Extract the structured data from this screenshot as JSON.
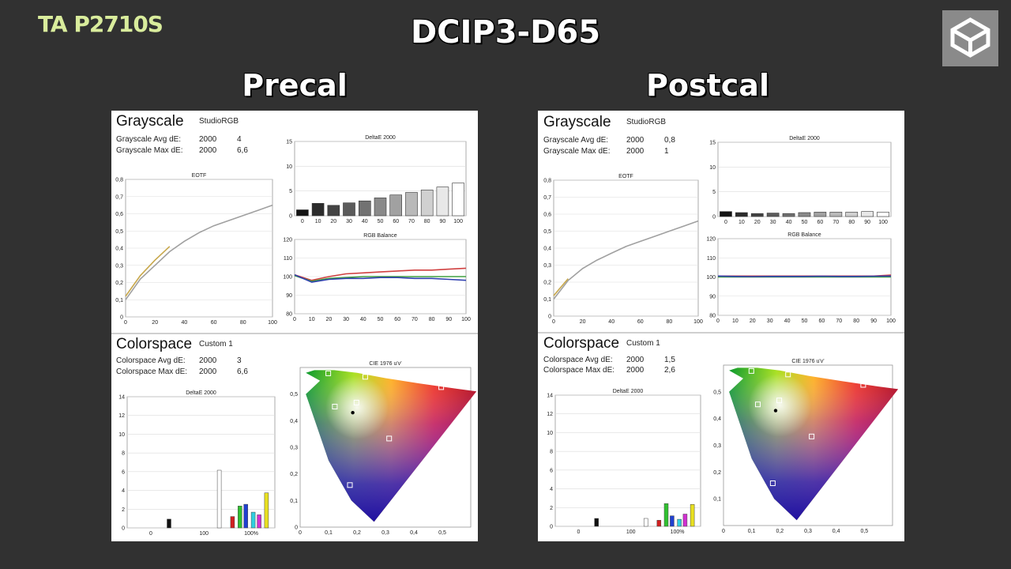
{
  "header": {
    "brand": "TA P2710S",
    "title": "DCIP3-D65"
  },
  "panels": [
    {
      "heading": "Precal",
      "grayscale": {
        "title": "Grayscale",
        "mode": "StudioRGB",
        "avg_label": "Grayscale Avg dE:",
        "avg_std": "2000",
        "avg_val": "4",
        "max_label": "Grayscale Max dE:",
        "max_std": "2000",
        "max_val": "6,6"
      },
      "colorspace": {
        "title": "Colorspace",
        "mode": "Custom 1",
        "avg_label": "Colorspace Avg dE:",
        "avg_std": "2000",
        "avg_val": "3",
        "max_label": "Colorspace Max dE:",
        "max_std": "2000",
        "max_val": "6,6"
      }
    },
    {
      "heading": "Postcal",
      "grayscale": {
        "title": "Grayscale",
        "mode": "StudioRGB",
        "avg_label": "Grayscale Avg dE:",
        "avg_std": "2000",
        "avg_val": "0,8",
        "max_label": "Grayscale Max dE:",
        "max_std": "2000",
        "max_val": "1"
      },
      "colorspace": {
        "title": "Colorspace",
        "mode": "Custom 1",
        "avg_label": "Colorspace Avg dE:",
        "avg_std": "2000",
        "avg_val": "1,5",
        "max_label": "Colorspace Max dE:",
        "max_std": "2000",
        "max_val": "2,6"
      }
    }
  ],
  "chart_data": [
    {
      "panel": 0,
      "id": "eotf",
      "type": "line",
      "title": "EOTF",
      "xticks": [
        "0",
        "20",
        "40",
        "60",
        "80",
        "100"
      ],
      "yticks": [
        "0",
        "0,1",
        "0,2",
        "0,3",
        "0,4",
        "0,5",
        "0,6",
        "0,7",
        "0,8"
      ],
      "xlim": [
        0,
        100
      ],
      "ylim": [
        0,
        0.8
      ],
      "series": [
        {
          "color": "#a0a0a0",
          "x": [
            0,
            10,
            20,
            30,
            40,
            50,
            60,
            70,
            80,
            90,
            100
          ],
          "y": [
            0.1,
            0.22,
            0.3,
            0.38,
            0.44,
            0.49,
            0.53,
            0.56,
            0.59,
            0.62,
            0.65
          ]
        },
        {
          "color": "#c8a84c",
          "x": [
            0,
            10,
            20,
            30
          ],
          "y": [
            0.12,
            0.24,
            0.33,
            0.41
          ]
        }
      ]
    },
    {
      "panel": 0,
      "id": "gs_de",
      "type": "bar",
      "title": "DeltaE 2000",
      "categories": [
        "0",
        "10",
        "20",
        "30",
        "40",
        "50",
        "60",
        "70",
        "80",
        "90",
        "100"
      ],
      "yticks": [
        "0",
        "5",
        "10",
        "15"
      ],
      "ylim": [
        0,
        15
      ],
      "values": [
        1.2,
        2.5,
        2.1,
        2.6,
        3.0,
        3.6,
        4.2,
        4.7,
        5.2,
        5.8,
        6.6
      ]
    },
    {
      "panel": 0,
      "id": "rgb",
      "type": "line",
      "title": "RGB Balance",
      "xticks": [
        "0",
        "10",
        "20",
        "30",
        "40",
        "50",
        "60",
        "70",
        "80",
        "90",
        "100"
      ],
      "yticks": [
        "80",
        "90",
        "100",
        "110",
        "120"
      ],
      "xlim": [
        0,
        100
      ],
      "ylim": [
        80,
        120
      ],
      "series": [
        {
          "color": "#d04040",
          "x": [
            0,
            10,
            20,
            30,
            40,
            50,
            60,
            70,
            80,
            90,
            100
          ],
          "y": [
            101,
            98,
            100,
            101.5,
            102,
            102.5,
            103,
            103.5,
            103.5,
            104,
            104.5
          ]
        },
        {
          "color": "#40a040",
          "x": [
            0,
            10,
            20,
            30,
            40,
            50,
            60,
            70,
            80,
            90,
            100
          ],
          "y": [
            100.5,
            97.5,
            99,
            99.5,
            100,
            100,
            100,
            100,
            100,
            100,
            100
          ]
        },
        {
          "color": "#3040b0",
          "x": [
            0,
            10,
            20,
            30,
            40,
            50,
            60,
            70,
            80,
            90,
            100
          ],
          "y": [
            101,
            97,
            98.5,
            99,
            99,
            99.5,
            99.5,
            99,
            99,
            98.5,
            98
          ]
        }
      ]
    },
    {
      "panel": 0,
      "id": "cs_de",
      "type": "bar",
      "title": "DeltaE 2000",
      "xticks": [
        "0",
        "100",
        "100%"
      ],
      "yticks": [
        "0",
        "2",
        "4",
        "6",
        "8",
        "10",
        "12",
        "14"
      ],
      "ylim": [
        0,
        15
      ],
      "bars": [
        {
          "color": "#111111",
          "value": 1.0
        },
        {
          "color": "#ffffff",
          "value": 6.6
        },
        {
          "color": "#d02020",
          "value": 1.3
        },
        {
          "color": "#30c030",
          "value": 2.5
        },
        {
          "color": "#2040d0",
          "value": 2.7
        },
        {
          "color": "#30d0e0",
          "value": 1.8
        },
        {
          "color": "#d030d0",
          "value": 1.5
        },
        {
          "color": "#e8e020",
          "value": 4.0
        }
      ]
    },
    {
      "panel": 0,
      "id": "cie",
      "type": "scatter",
      "title": "CIE 1976 u'v'",
      "xticks": [
        "0",
        "0,1",
        "0,2",
        "0,3",
        "0,4",
        "0,5"
      ],
      "yticks": [
        "0",
        "0,1",
        "0,2",
        "0,3",
        "0,4",
        "0,5"
      ],
      "xlim": [
        0,
        0.6
      ],
      "ylim": [
        0,
        0.6
      ],
      "targets": [
        [
          0.099,
          0.578
        ],
        [
          0.496,
          0.526
        ],
        [
          0.175,
          0.158
        ],
        [
          0.198,
          0.468
        ],
        [
          0.313,
          0.333
        ],
        [
          0.122,
          0.453
        ],
        [
          0.229,
          0.565
        ]
      ],
      "white": [
        0.185,
        0.43
      ]
    },
    {
      "panel": 1,
      "id": "eotf",
      "type": "line",
      "title": "EOTF",
      "xticks": [
        "0",
        "20",
        "40",
        "60",
        "80",
        "100"
      ],
      "yticks": [
        "0",
        "0,1",
        "0,2",
        "0,3",
        "0,4",
        "0,5",
        "0,6",
        "0,7",
        "0,8"
      ],
      "xlim": [
        0,
        100
      ],
      "ylim": [
        0,
        0.8
      ],
      "series": [
        {
          "color": "#a0a0a0",
          "x": [
            0,
            10,
            20,
            30,
            40,
            50,
            60,
            70,
            80,
            90,
            100
          ],
          "y": [
            0.1,
            0.21,
            0.28,
            0.33,
            0.37,
            0.41,
            0.44,
            0.47,
            0.5,
            0.53,
            0.56
          ]
        },
        {
          "color": "#c8a84c",
          "x": [
            0,
            5,
            10
          ],
          "y": [
            0.12,
            0.17,
            0.22
          ]
        }
      ]
    },
    {
      "panel": 1,
      "id": "gs_de",
      "type": "bar",
      "title": "DeltaE 2000",
      "categories": [
        "0",
        "10",
        "20",
        "30",
        "40",
        "50",
        "60",
        "70",
        "80",
        "90",
        "100"
      ],
      "yticks": [
        "0",
        "5",
        "10",
        "15"
      ],
      "ylim": [
        0,
        15
      ],
      "values": [
        1.0,
        0.8,
        0.6,
        0.7,
        0.6,
        0.8,
        0.9,
        0.9,
        0.9,
        1.0,
        0.9
      ]
    },
    {
      "panel": 1,
      "id": "rgb",
      "type": "line",
      "title": "RGB Balance",
      "xticks": [
        "0",
        "10",
        "20",
        "30",
        "40",
        "50",
        "60",
        "70",
        "80",
        "90",
        "100"
      ],
      "yticks": [
        "80",
        "90",
        "100",
        "110",
        "120"
      ],
      "xlim": [
        0,
        100
      ],
      "ylim": [
        80,
        120
      ],
      "series": [
        {
          "color": "#d04040",
          "x": [
            0,
            10,
            20,
            30,
            40,
            50,
            60,
            70,
            80,
            90,
            100
          ],
          "y": [
            100.5,
            100.5,
            100.5,
            100.5,
            100.5,
            100.5,
            100.5,
            100.5,
            100.5,
            100.5,
            101
          ]
        },
        {
          "color": "#40a040",
          "x": [
            0,
            10,
            20,
            30,
            40,
            50,
            60,
            70,
            80,
            90,
            100
          ],
          "y": [
            100,
            100,
            100,
            100,
            100,
            100,
            100,
            100,
            100,
            100,
            100
          ]
        },
        {
          "color": "#3040b0",
          "x": [
            0,
            10,
            20,
            30,
            40,
            50,
            60,
            70,
            80,
            90,
            100
          ],
          "y": [
            100.5,
            100.3,
            100.2,
            100.3,
            100.3,
            100.3,
            100.4,
            100.3,
            100.3,
            100.4,
            100.5
          ]
        }
      ]
    },
    {
      "panel": 1,
      "id": "cs_de",
      "type": "bar",
      "title": "DeltaE 2000",
      "xticks": [
        "0",
        "100",
        "100%"
      ],
      "yticks": [
        "0",
        "2",
        "4",
        "6",
        "8",
        "10",
        "12",
        "14"
      ],
      "ylim": [
        0,
        15
      ],
      "bars": [
        {
          "color": "#111111",
          "value": 0.9
        },
        {
          "color": "#ffffff",
          "value": 0.9
        },
        {
          "color": "#d02020",
          "value": 0.7
        },
        {
          "color": "#30c030",
          "value": 2.6
        },
        {
          "color": "#2040d0",
          "value": 1.2
        },
        {
          "color": "#30d0e0",
          "value": 0.8
        },
        {
          "color": "#d030d0",
          "value": 1.4
        },
        {
          "color": "#e8e020",
          "value": 2.5
        }
      ]
    },
    {
      "panel": 1,
      "id": "cie",
      "type": "scatter",
      "title": "CIE 1976 u'v'",
      "xticks": [
        "0",
        "0,1",
        "0,2",
        "0,3",
        "0,4",
        "0,5"
      ],
      "yticks": [
        "0,1",
        "0,2",
        "0,3",
        "0,4",
        "0,5"
      ],
      "xlim": [
        0,
        0.6
      ],
      "ylim": [
        0,
        0.6
      ],
      "targets": [
        [
          0.099,
          0.578
        ],
        [
          0.496,
          0.526
        ],
        [
          0.175,
          0.158
        ],
        [
          0.198,
          0.468
        ],
        [
          0.313,
          0.333
        ],
        [
          0.122,
          0.453
        ],
        [
          0.229,
          0.565
        ]
      ],
      "white": [
        0.185,
        0.43
      ]
    }
  ]
}
